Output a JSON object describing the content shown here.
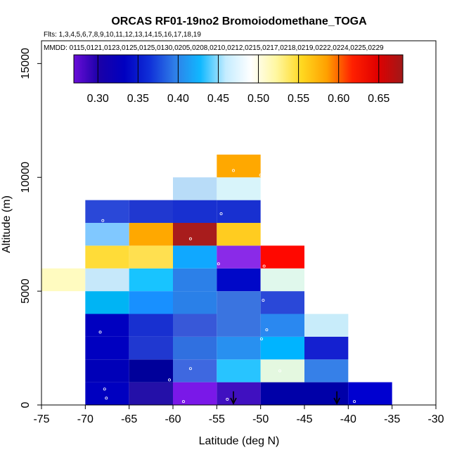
{
  "chart_data": {
    "type": "heatmap",
    "title": "ORCAS RF01-19no2 Bromoiodomethane_TOGA",
    "flights_label": "Flts: 1,3,4,5,6,7,8,9,10,11,12,13,14,15,16,17,18,19",
    "mmdd_label": "MMDD: 0115,0121,0123,0125,0125,0130,0205,0208,0210,0212,0215,0217,0218,0219,0222,0224,0225,0229",
    "xlabel": "Latitude (deg N)",
    "ylabel": "Altitude (m)",
    "xlim": [
      -75,
      -30
    ],
    "ylim": [
      0,
      16000
    ],
    "x_ticks": [
      -75,
      -70,
      -65,
      -60,
      -55,
      -50,
      -45,
      -40,
      -35,
      -30
    ],
    "x_tick_labels": [
      "-75",
      "-70",
      "-65",
      "-60",
      "-55",
      "-50",
      "-45",
      "-40",
      "-35",
      "-30"
    ],
    "y_ticks": [
      0,
      5000,
      10000,
      15000
    ],
    "y_tick_labels": [
      "0",
      "5000",
      "10000",
      "15000"
    ],
    "colorbar": {
      "range": [
        0.27,
        0.68
      ],
      "ticks": [
        0.3,
        0.35,
        0.4,
        0.45,
        0.5,
        0.55,
        0.6,
        0.65
      ],
      "tick_labels": [
        "0.30",
        "0.35",
        "0.40",
        "0.45",
        "0.50",
        "0.55",
        "0.60",
        "0.65"
      ],
      "stops": [
        "#6a0dd8",
        "#1a00a8",
        "#0000c0",
        "#1030d8",
        "#2f7fe8",
        "#10b8ff",
        "#c4ecff",
        "#ffffff",
        "#fff7a0",
        "#ffd820",
        "#ffa000",
        "#ff2000",
        "#e00000",
        "#a01818"
      ]
    },
    "cells": [
      {
        "x0": -75,
        "x1": -70,
        "y0": 5000,
        "y1": 6000,
        "color": "#fffbc0"
      },
      {
        "x0": -70,
        "x1": -65,
        "y0": 0,
        "y1": 1000,
        "color": "#0000c0"
      },
      {
        "x0": -70,
        "x1": -65,
        "y0": 1000,
        "y1": 2000,
        "color": "#0000b8"
      },
      {
        "x0": -70,
        "x1": -65,
        "y0": 2000,
        "y1": 3000,
        "color": "#0000c0"
      },
      {
        "x0": -70,
        "x1": -65,
        "y0": 3000,
        "y1": 4000,
        "color": "#0000c0"
      },
      {
        "x0": -70,
        "x1": -65,
        "y0": 4000,
        "y1": 5000,
        "color": "#00b4f4"
      },
      {
        "x0": -70,
        "x1": -65,
        "y0": 5000,
        "y1": 6000,
        "color": "#c6e8fa"
      },
      {
        "x0": -70,
        "x1": -65,
        "y0": 6000,
        "y1": 7000,
        "color": "#ffdc38"
      },
      {
        "x0": -70,
        "x1": -65,
        "y0": 7000,
        "y1": 8000,
        "color": "#80c8ff"
      },
      {
        "x0": -70,
        "x1": -65,
        "y0": 8000,
        "y1": 9000,
        "color": "#2a48d8"
      },
      {
        "x0": -65,
        "x1": -60,
        "y0": 0,
        "y1": 1000,
        "color": "#2410a8"
      },
      {
        "x0": -65,
        "x1": -60,
        "y0": 1000,
        "y1": 2000,
        "color": "#00009a"
      },
      {
        "x0": -65,
        "x1": -60,
        "y0": 2000,
        "y1": 3000,
        "color": "#2038d0"
      },
      {
        "x0": -65,
        "x1": -60,
        "y0": 3000,
        "y1": 4000,
        "color": "#1830d0"
      },
      {
        "x0": -65,
        "x1": -60,
        "y0": 4000,
        "y1": 5000,
        "color": "#1890ff"
      },
      {
        "x0": -65,
        "x1": -60,
        "y0": 5000,
        "y1": 6000,
        "color": "#18c4ff"
      },
      {
        "x0": -65,
        "x1": -60,
        "y0": 6000,
        "y1": 7000,
        "color": "#ffe050"
      },
      {
        "x0": -65,
        "x1": -60,
        "y0": 7000,
        "y1": 8000,
        "color": "#ffa800"
      },
      {
        "x0": -65,
        "x1": -60,
        "y0": 8000,
        "y1": 9000,
        "color": "#2038d0"
      },
      {
        "x0": -60,
        "x1": -55,
        "y0": 0,
        "y1": 1000,
        "color": "#7a18e8"
      },
      {
        "x0": -60,
        "x1": -55,
        "y0": 1000,
        "y1": 2000,
        "color": "#3e68e0"
      },
      {
        "x0": -60,
        "x1": -55,
        "y0": 2000,
        "y1": 3000,
        "color": "#3070e0"
      },
      {
        "x0": -60,
        "x1": -55,
        "y0": 3000,
        "y1": 4000,
        "color": "#3858d8"
      },
      {
        "x0": -60,
        "x1": -55,
        "y0": 4000,
        "y1": 5000,
        "color": "#2a80e8"
      },
      {
        "x0": -60,
        "x1": -55,
        "y0": 5000,
        "y1": 6000,
        "color": "#2c80e8"
      },
      {
        "x0": -60,
        "x1": -55,
        "y0": 6000,
        "y1": 7000,
        "color": "#10a8ff"
      },
      {
        "x0": -60,
        "x1": -55,
        "y0": 7000,
        "y1": 8000,
        "color": "#a81c1c"
      },
      {
        "x0": -60,
        "x1": -55,
        "y0": 8000,
        "y1": 9000,
        "color": "#1830d0"
      },
      {
        "x0": -60,
        "x1": -55,
        "y0": 9000,
        "y1": 10000,
        "color": "#b8dcf8"
      },
      {
        "x0": -55,
        "x1": -50,
        "y0": 0,
        "y1": 1000,
        "color": "#4010c0"
      },
      {
        "x0": -55,
        "x1": -50,
        "y0": 1000,
        "y1": 2000,
        "color": "#28c4ff"
      },
      {
        "x0": -55,
        "x1": -50,
        "y0": 2000,
        "y1": 3000,
        "color": "#2890f0"
      },
      {
        "x0": -55,
        "x1": -50,
        "y0": 3000,
        "y1": 4000,
        "color": "#3a74e0"
      },
      {
        "x0": -55,
        "x1": -50,
        "y0": 4000,
        "y1": 5000,
        "color": "#3a74e0"
      },
      {
        "x0": -55,
        "x1": -50,
        "y0": 5000,
        "y1": 6000,
        "color": "#0008c8"
      },
      {
        "x0": -55,
        "x1": -50,
        "y0": 6000,
        "y1": 7000,
        "color": "#8a2ae8"
      },
      {
        "x0": -55,
        "x1": -50,
        "y0": 7000,
        "y1": 8000,
        "color": "#ffcc20"
      },
      {
        "x0": -55,
        "x1": -50,
        "y0": 8000,
        "y1": 9000,
        "color": "#1830d0"
      },
      {
        "x0": -55,
        "x1": -50,
        "y0": 9000,
        "y1": 10000,
        "color": "#d8f4fa"
      },
      {
        "x0": -55,
        "x1": -50,
        "y0": 10000,
        "y1": 11000,
        "color": "#ffa800"
      },
      {
        "x0": -50,
        "x1": -45,
        "y0": 0,
        "y1": 1000,
        "color": "#0000a8"
      },
      {
        "x0": -50,
        "x1": -45,
        "y0": 1000,
        "y1": 2000,
        "color": "#e4f8e0"
      },
      {
        "x0": -50,
        "x1": -45,
        "y0": 2000,
        "y1": 3000,
        "color": "#00b4ff"
      },
      {
        "x0": -50,
        "x1": -45,
        "y0": 3000,
        "y1": 4000,
        "color": "#2a88f0"
      },
      {
        "x0": -50,
        "x1": -45,
        "y0": 4000,
        "y1": 5000,
        "color": "#2a48d8"
      },
      {
        "x0": -50,
        "x1": -45,
        "y0": 5000,
        "y1": 6000,
        "color": "#e0f8ec"
      },
      {
        "x0": -50,
        "x1": -45,
        "y0": 6000,
        "y1": 7000,
        "color": "#ff0800"
      },
      {
        "x0": -45,
        "x1": -40,
        "y0": 0,
        "y1": 1000,
        "color": "#0000a8"
      },
      {
        "x0": -45,
        "x1": -40,
        "y0": 1000,
        "y1": 2000,
        "color": "#3680e8"
      },
      {
        "x0": -45,
        "x1": -40,
        "y0": 2000,
        "y1": 3000,
        "color": "#1420d0"
      },
      {
        "x0": -45,
        "x1": -40,
        "y0": 3000,
        "y1": 4000,
        "color": "#c8ecfa"
      },
      {
        "x0": -40,
        "x1": -35,
        "y0": 0,
        "y1": 1000,
        "color": "#0000d0"
      }
    ],
    "points": [
      [
        -68.0,
        8100
      ],
      [
        -68.3,
        3200
      ],
      [
        -67.8,
        700
      ],
      [
        -67.6,
        300
      ],
      [
        -58.0,
        7300
      ],
      [
        -58.0,
        1600
      ],
      [
        -58.8,
        150
      ],
      [
        -60.4,
        1100
      ],
      [
        -53.1,
        10300
      ],
      [
        -54.5,
        8400
      ],
      [
        -54.8,
        6200
      ],
      [
        -53.8,
        250
      ],
      [
        -50.0,
        10100
      ],
      [
        -49.6,
        6100
      ],
      [
        -49.7,
        4600
      ],
      [
        -49.3,
        3300
      ],
      [
        -49.9,
        2900
      ],
      [
        -47.8,
        1500
      ],
      [
        -39.3,
        150
      ]
    ],
    "arrows_lat": [
      -53.1,
      -41.3
    ]
  }
}
